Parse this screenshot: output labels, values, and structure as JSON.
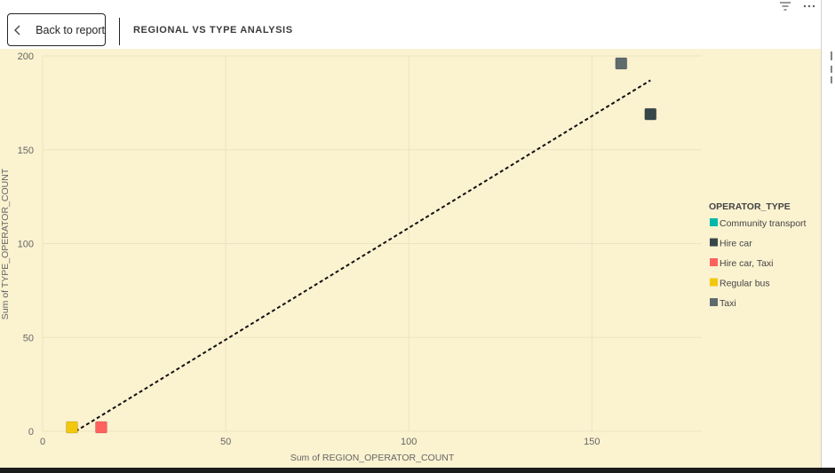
{
  "header": {
    "back_label": "Back to report",
    "page_title": "REGIONAL VS TYPE ANALYSIS"
  },
  "icons": {
    "back": "chevron-left-icon",
    "filter": "filter-icon",
    "more": "more-options-icon"
  },
  "colors": {
    "background": "#fbf2d0",
    "trendline": "#111111",
    "gridline": "#ece4c0"
  },
  "chart_data": {
    "type": "scatter",
    "title": "",
    "xlabel": "Sum of REGION_OPERATOR_COUNT",
    "ylabel": "Sum of TYPE_OPERATOR_COUNT",
    "xlim": [
      0,
      180
    ],
    "ylim": [
      0,
      200
    ],
    "x_ticks": [
      0,
      50,
      100,
      150
    ],
    "y_ticks": [
      0,
      50,
      100,
      150,
      200
    ],
    "grid": true,
    "legend": {
      "title": "OPERATOR_TYPE",
      "position": "right",
      "entries": [
        {
          "name": "Community transport",
          "color": "#01b8aa"
        },
        {
          "name": "Hire car",
          "color": "#374649"
        },
        {
          "name": "Hire car, Taxi",
          "color": "#fd625e"
        },
        {
          "name": "Regular bus",
          "color": "#f2c80f"
        },
        {
          "name": "Taxi",
          "color": "#5f6b6d"
        }
      ]
    },
    "series": [
      {
        "name": "Community transport",
        "color": "#01b8aa",
        "points": []
      },
      {
        "name": "Hire car",
        "color": "#374649",
        "points": [
          {
            "x": 166,
            "y": 169
          }
        ]
      },
      {
        "name": "Hire car, Taxi",
        "color": "#fd625e",
        "points": [
          {
            "x": 16,
            "y": 2
          }
        ]
      },
      {
        "name": "Regular bus",
        "color": "#f2c80f",
        "points": [
          {
            "x": 8,
            "y": 2
          }
        ]
      },
      {
        "name": "Taxi",
        "color": "#5f6b6d",
        "points": [
          {
            "x": 158,
            "y": 196
          }
        ]
      }
    ],
    "trendline": {
      "style": "dashed",
      "from": {
        "x": 9,
        "y": 0
      },
      "to": {
        "x": 166,
        "y": 187
      }
    }
  }
}
